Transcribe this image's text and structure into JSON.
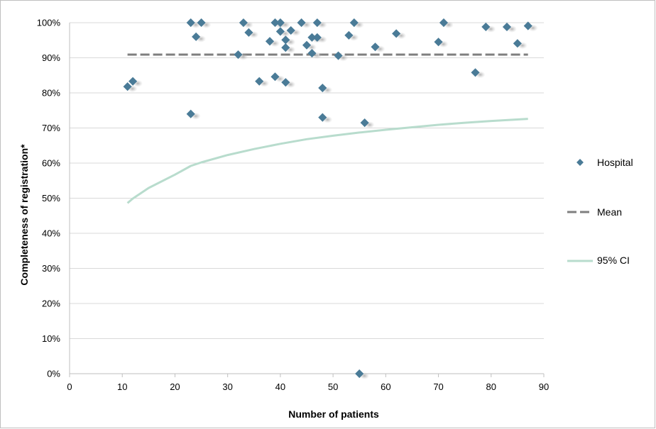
{
  "chart_data": {
    "type": "scatter",
    "xlabel": "Number of patients",
    "ylabel": "Completeness of registration*",
    "xlim": [
      0,
      90
    ],
    "ylim": [
      0,
      100
    ],
    "x_ticks": [
      "0",
      "10",
      "20",
      "30",
      "40",
      "50",
      "60",
      "70",
      "80",
      "90"
    ],
    "y_ticks": [
      "0%",
      "10%",
      "20%",
      "30%",
      "40%",
      "50%",
      "60%",
      "70%",
      "80%",
      "90%",
      "100%"
    ],
    "grid": "horizontal",
    "legend_position": "right",
    "series": [
      {
        "name": "Hospital",
        "kind": "scatter",
        "color": "#4a7b97",
        "points": [
          [
            11,
            81.8
          ],
          [
            12,
            83.3
          ],
          [
            23,
            100
          ],
          [
            23,
            74
          ],
          [
            24,
            96
          ],
          [
            25,
            100
          ],
          [
            32,
            90.9
          ],
          [
            33,
            100
          ],
          [
            34,
            97.2
          ],
          [
            36,
            83.3
          ],
          [
            38,
            94.7
          ],
          [
            39,
            100
          ],
          [
            39,
            84.6
          ],
          [
            40,
            97.5
          ],
          [
            40,
            100
          ],
          [
            41,
            95.1
          ],
          [
            41,
            92.9
          ],
          [
            41,
            83
          ],
          [
            42,
            97.8
          ],
          [
            44,
            100
          ],
          [
            45,
            93.6
          ],
          [
            46,
            95.8
          ],
          [
            46,
            91.3
          ],
          [
            47,
            100
          ],
          [
            47,
            95.8
          ],
          [
            48,
            81.4
          ],
          [
            48,
            73
          ],
          [
            51,
            90.6
          ],
          [
            53,
            96.4
          ],
          [
            54,
            100
          ],
          [
            55,
            0
          ],
          [
            56,
            71.5
          ],
          [
            58,
            93.1
          ],
          [
            62,
            96.9
          ],
          [
            70,
            94.5
          ],
          [
            71,
            100
          ],
          [
            77,
            85.8
          ],
          [
            79,
            98.8
          ],
          [
            83,
            98.8
          ],
          [
            85,
            94.1
          ],
          [
            87,
            99.1
          ]
        ]
      },
      {
        "name": "Mean",
        "kind": "line",
        "style": "dashed",
        "color": "#7f7f7f",
        "points": [
          [
            11,
            90.9
          ],
          [
            87,
            90.9
          ]
        ]
      },
      {
        "name": "95% CI",
        "kind": "line",
        "color": "#b8dccd",
        "points": [
          [
            11,
            48.6
          ],
          [
            12,
            49.9
          ],
          [
            15,
            52.9
          ],
          [
            20,
            56.7
          ],
          [
            23,
            59.2
          ],
          [
            25,
            60.2
          ],
          [
            30,
            62.3
          ],
          [
            35,
            64
          ],
          [
            40,
            65.5
          ],
          [
            45,
            66.8
          ],
          [
            50,
            67.8
          ],
          [
            55,
            68.7
          ],
          [
            60,
            69.5
          ],
          [
            65,
            70.2
          ],
          [
            70,
            70.9
          ],
          [
            75,
            71.5
          ],
          [
            80,
            72
          ],
          [
            87,
            72.6
          ]
        ]
      }
    ]
  }
}
